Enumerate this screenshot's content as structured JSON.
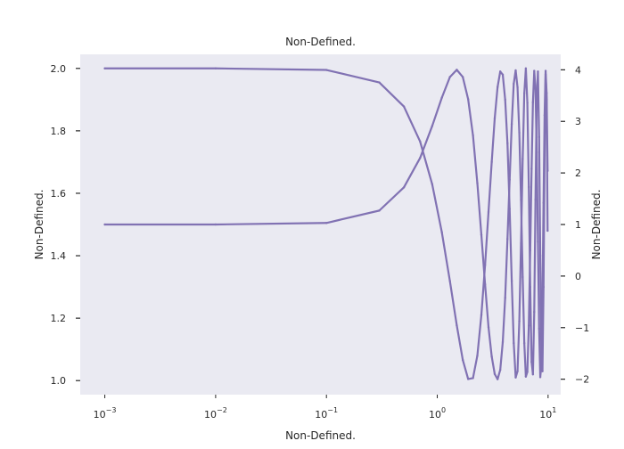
{
  "chart_data": {
    "type": "line",
    "title": "Non-Defined.",
    "xlabel": "Non-Defined.",
    "ylabel_left": "Non-Defined.",
    "ylabel_right": "Non-Defined.",
    "x_scale": "log",
    "xlim": [
      0.0006,
      13
    ],
    "ylim_left": [
      0.955,
      2.045
    ],
    "ylim_right": [
      -2.3,
      4.3
    ],
    "x_ticks": [
      {
        "value": 0.001,
        "base": "10",
        "exp": "−3"
      },
      {
        "value": 0.01,
        "base": "10",
        "exp": "−2"
      },
      {
        "value": 0.1,
        "base": "10",
        "exp": "−1"
      },
      {
        "value": 1,
        "base": "10",
        "exp": "0"
      },
      {
        "value": 10,
        "base": "10",
        "exp": "1"
      }
    ],
    "y_ticks_left": [
      "1.0",
      "1.2",
      "1.4",
      "1.6",
      "1.8",
      "2.0"
    ],
    "y_ticks_right": [
      "−2",
      "−1",
      "0",
      "1",
      "2",
      "3",
      "4"
    ],
    "grid": false,
    "background_color": "#eaeaf2",
    "series": [
      {
        "axis": "left",
        "color": "#8172b3",
        "x": [
          0.001,
          0.01,
          0.1,
          0.3,
          0.5,
          0.7,
          0.9,
          1.1,
          1.3,
          1.5,
          1.7,
          1.9,
          2.1,
          2.3,
          2.5,
          2.7,
          2.9,
          3.1,
          3.3,
          3.5,
          3.7,
          3.9,
          4.1,
          4.3,
          4.5,
          4.7,
          4.9,
          5.1,
          5.3,
          5.5,
          5.7,
          5.9,
          6.1,
          6.3,
          6.5,
          6.7,
          6.9,
          7.1,
          7.3,
          7.5,
          7.7,
          7.9,
          8.1,
          8.3,
          8.5,
          8.7,
          8.9,
          9.1,
          9.3,
          9.5,
          9.7,
          9.9
        ],
        "y": [
          2.0,
          2.0,
          1.995,
          1.955,
          1.878,
          1.766,
          1.629,
          1.475,
          1.319,
          1.177,
          1.066,
          1.005,
          1.008,
          1.08,
          1.21,
          1.37,
          1.54,
          1.7,
          1.84,
          1.94,
          1.99,
          1.98,
          1.9,
          1.76,
          1.55,
          1.32,
          1.12,
          1.01,
          1.03,
          1.19,
          1.44,
          1.71,
          1.92,
          2.0,
          1.89,
          1.62,
          1.3,
          1.06,
          1.02,
          1.22,
          1.58,
          1.9,
          1.99,
          1.78,
          1.4,
          1.08,
          1.03,
          1.3,
          1.72,
          1.98,
          1.9,
          1.48
        ]
      },
      {
        "axis": "right",
        "color": "#8172b3",
        "x": [
          0.001,
          0.01,
          0.1,
          0.3,
          0.5,
          0.7,
          0.9,
          1.1,
          1.3,
          1.5,
          1.7,
          1.9,
          2.1,
          2.3,
          2.5,
          2.7,
          2.9,
          3.1,
          3.3,
          3.5,
          3.7,
          3.9,
          4.1,
          4.3,
          4.5,
          4.7,
          4.9,
          5.1,
          5.3,
          5.5,
          5.7,
          5.9,
          6.1,
          6.3,
          6.5,
          6.7,
          6.9,
          7.1,
          7.3,
          7.5,
          7.7,
          7.9,
          8.1,
          8.3,
          8.5,
          8.7,
          8.9,
          9.1,
          9.3,
          9.5,
          9.7,
          9.9
        ],
        "y": [
          1.0,
          1.0,
          1.03,
          1.27,
          1.72,
          2.29,
          2.91,
          3.46,
          3.86,
          4.0,
          3.86,
          3.43,
          2.73,
          1.8,
          0.8,
          -0.16,
          -0.99,
          -1.56,
          -1.9,
          -2.0,
          -1.82,
          -1.28,
          -0.42,
          0.72,
          1.87,
          2.95,
          3.73,
          3.99,
          3.66,
          2.78,
          1.48,
          -0.02,
          -1.3,
          -1.95,
          -1.86,
          -0.96,
          0.5,
          2.08,
          3.37,
          3.98,
          3.63,
          2.4,
          0.67,
          -1.02,
          -1.96,
          -1.73,
          -0.4,
          1.42,
          3.12,
          3.98,
          3.55,
          2.04
        ]
      }
    ]
  }
}
